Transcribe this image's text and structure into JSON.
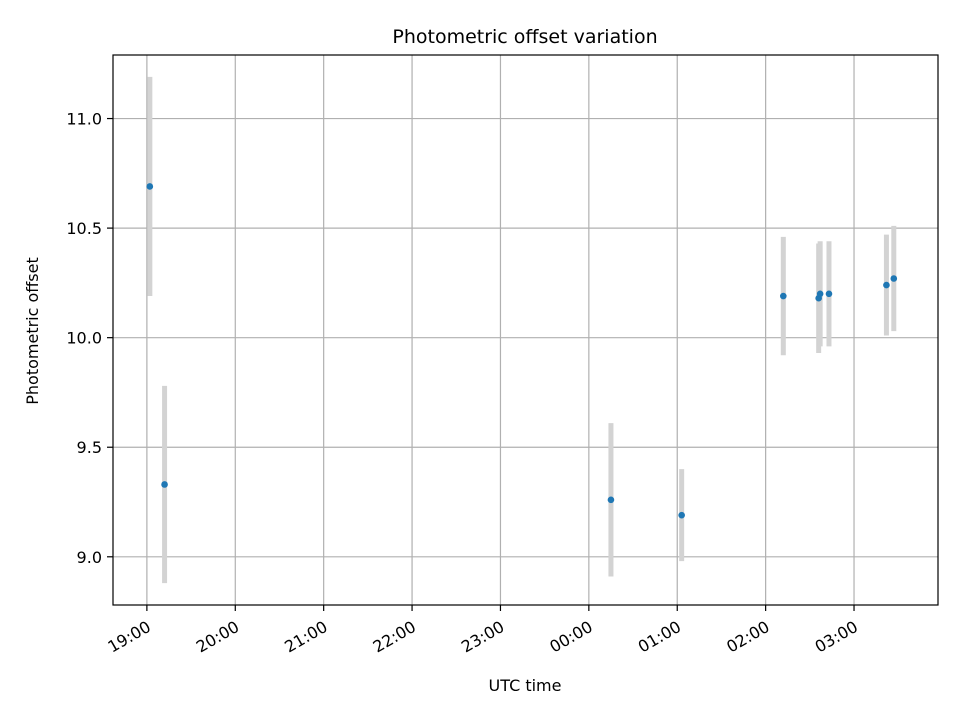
{
  "chart_data": {
    "type": "scatter",
    "title": "Photometric offset variation",
    "xlabel": "UTC time",
    "ylabel": "Photometric offset",
    "x_unit": "UTC",
    "x_ticks": [
      "19:00",
      "20:00",
      "21:00",
      "22:00",
      "23:00",
      "00:00",
      "01:00",
      "02:00",
      "03:00"
    ],
    "xlim": [
      "18:37",
      "03:57"
    ],
    "ylim": [
      8.78,
      11.29
    ],
    "y_ticks": [
      "9.0",
      "9.5",
      "10.0",
      "10.5",
      "11.0"
    ],
    "grid": true,
    "series": [
      {
        "marker_color": "#1f77b4",
        "errorbar_color": "#d3d3d3",
        "points": [
          {
            "x": "19:02",
            "y": 10.69,
            "yerr": 0.5
          },
          {
            "x": "19:12",
            "y": 9.33,
            "yerr": 0.45
          },
          {
            "x": "00:15",
            "y": 9.26,
            "yerr": 0.35
          },
          {
            "x": "01:03",
            "y": 9.19,
            "yerr": 0.21
          },
          {
            "x": "02:12",
            "y": 10.19,
            "yerr": 0.27
          },
          {
            "x": "02:36",
            "y": 10.18,
            "yerr": 0.25
          },
          {
            "x": "02:37",
            "y": 10.2,
            "yerr": 0.24
          },
          {
            "x": "02:43",
            "y": 10.2,
            "yerr": 0.24
          },
          {
            "x": "03:22",
            "y": 10.24,
            "yerr": 0.23
          },
          {
            "x": "03:27",
            "y": 10.27,
            "yerr": 0.24
          }
        ]
      }
    ]
  }
}
